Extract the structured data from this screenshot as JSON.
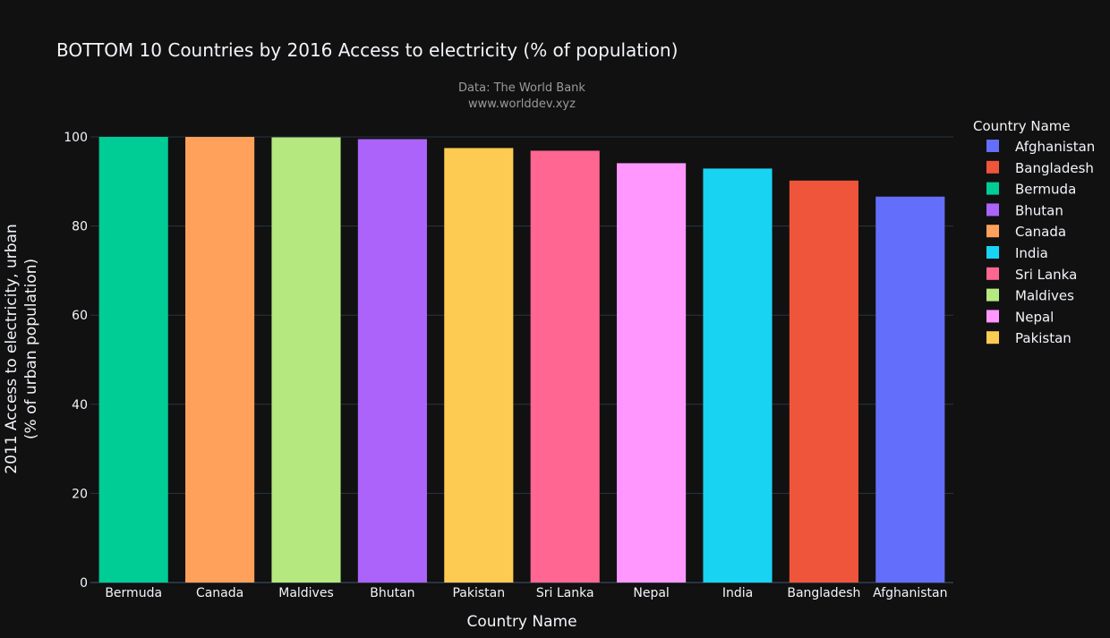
{
  "chart_data": {
    "type": "bar",
    "title": "BOTTOM 10 Countries by 2016 Access to electricity (% of population)",
    "subtitle_lines": [
      "Data: The World Bank",
      "www.worlddev.xyz"
    ],
    "xlabel": "Country Name",
    "ylabel_lines": [
      "2011 Access to electricity, urban",
      "(% of urban population)"
    ],
    "ylim": [
      0,
      100
    ],
    "yticks": [
      0,
      20,
      40,
      60,
      80,
      100
    ],
    "grid": true,
    "legend_position": "top-right",
    "categories": [
      "Bermuda",
      "Canada",
      "Maldives",
      "Bhutan",
      "Pakistan",
      "Sri Lanka",
      "Nepal",
      "India",
      "Bangladesh",
      "Afghanistan"
    ],
    "values": [
      100,
      100,
      99.9,
      99.5,
      97.5,
      96.9,
      94.1,
      92.9,
      90.2,
      86.6
    ],
    "colors": [
      "#00cc96",
      "#ffa15a",
      "#b6e880",
      "#ab63fa",
      "#fecb52",
      "#ff6692",
      "#ff97ff",
      "#19d3f3",
      "#ef553b",
      "#636efa"
    ],
    "legend_title": "Country Name",
    "legend": [
      {
        "name": "Afghanistan",
        "color": "#636efa"
      },
      {
        "name": "Bangladesh",
        "color": "#ef553b"
      },
      {
        "name": "Bermuda",
        "color": "#00cc96"
      },
      {
        "name": "Bhutan",
        "color": "#ab63fa"
      },
      {
        "name": "Canada",
        "color": "#ffa15a"
      },
      {
        "name": "India",
        "color": "#19d3f3"
      },
      {
        "name": "Sri Lanka",
        "color": "#ff6692"
      },
      {
        "name": "Maldives",
        "color": "#b6e880"
      },
      {
        "name": "Nepal",
        "color": "#ff97ff"
      },
      {
        "name": "Pakistan",
        "color": "#fecb52"
      }
    ]
  },
  "theme": {
    "background": "#111111",
    "gridline": "#283442",
    "text": "#f2f5fa",
    "subtitle": "#9a9a9a"
  }
}
